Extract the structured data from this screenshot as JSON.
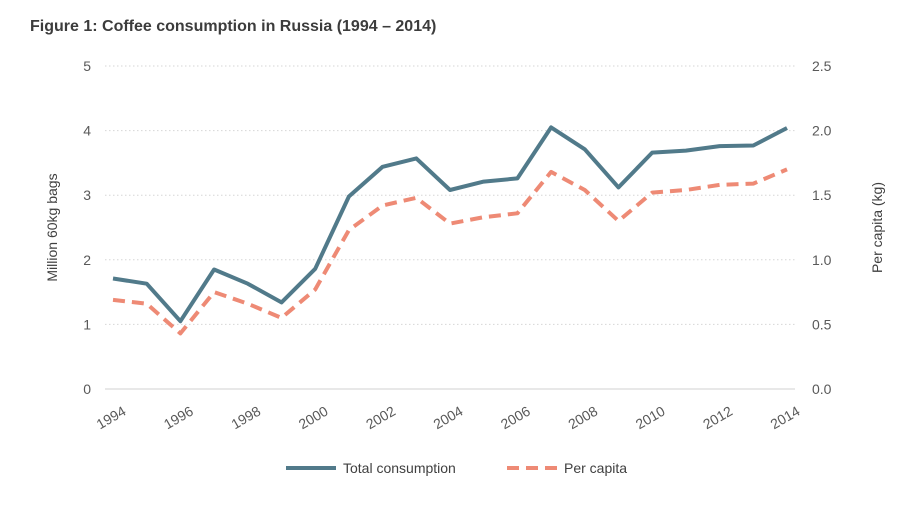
{
  "title": "Figure 1: Coffee consumption in Russia (1994 – 2014)",
  "chart_data": {
    "type": "line",
    "title": "Figure 1: Coffee consumption in Russia (1994 – 2014)",
    "x": [
      1994,
      1995,
      1996,
      1997,
      1998,
      1999,
      2000,
      2001,
      2002,
      2003,
      2004,
      2005,
      2006,
      2007,
      2008,
      2009,
      2010,
      2011,
      2012,
      2013,
      2014
    ],
    "x_tick_labels": [
      "1994",
      "1996",
      "1998",
      "2000",
      "2002",
      "2004",
      "2006",
      "2008",
      "2010",
      "2012",
      "2014"
    ],
    "ylabel": "Million 60kg bags",
    "ylabel_right": "Per capita (kg)",
    "ylim": [
      0,
      5
    ],
    "ylim_right": [
      0,
      2.5
    ],
    "y_tick_labels": [
      "0",
      "1",
      "2",
      "3",
      "4",
      "5"
    ],
    "y_right_tick_labels": [
      "0.0",
      "0.5",
      "1.0",
      "1.5",
      "2.0",
      "2.5"
    ],
    "grid": "horizontal dotted",
    "legend_position": "bottom",
    "series": [
      {
        "name": "Total consumption",
        "axis": "left",
        "color": "#517a8a",
        "style": "solid",
        "values": [
          1.71,
          1.63,
          1.05,
          1.85,
          1.63,
          1.34,
          1.86,
          2.98,
          3.44,
          3.57,
          3.08,
          3.21,
          3.26,
          4.05,
          3.71,
          3.12,
          3.66,
          3.69,
          3.76,
          3.77,
          4.04
        ]
      },
      {
        "name": "Per capita",
        "axis": "right",
        "color": "#ee8a75",
        "style": "dashed",
        "values": [
          0.69,
          0.66,
          0.43,
          0.75,
          0.66,
          0.55,
          0.77,
          1.23,
          1.42,
          1.48,
          1.28,
          1.33,
          1.36,
          1.68,
          1.54,
          1.3,
          1.52,
          1.54,
          1.58,
          1.59,
          1.7
        ]
      }
    ]
  }
}
